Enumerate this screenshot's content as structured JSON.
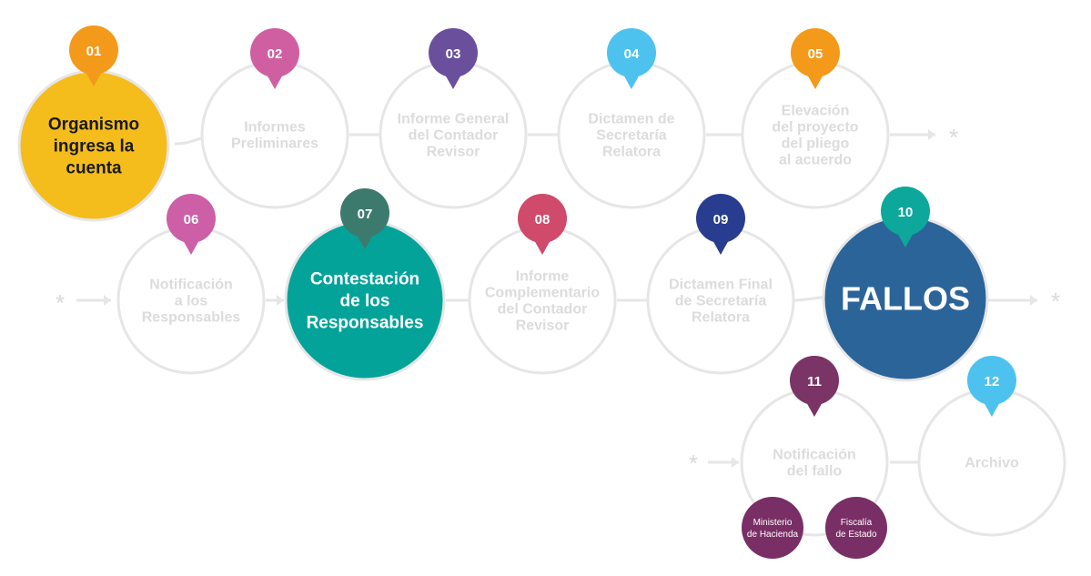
{
  "steps": [
    {
      "num": "01",
      "lines": [
        "Organismo",
        "ingresa la",
        "cuenta"
      ],
      "badge_color": "#f39a1b",
      "fill": "#f5bd1b",
      "active": true
    },
    {
      "num": "02",
      "lines": [
        "Informes",
        "Preliminares"
      ],
      "badge_color": "#d05fa2",
      "active": false
    },
    {
      "num": "03",
      "lines": [
        "Informe General",
        "del Contador",
        "Revisor"
      ],
      "badge_color": "#6a4f9c",
      "active": false
    },
    {
      "num": "04",
      "lines": [
        "Dictamen de",
        "Secretaría",
        "Relatora"
      ],
      "badge_color": "#4ec2ef",
      "active": false
    },
    {
      "num": "05",
      "lines": [
        "Elevación",
        "del proyecto",
        "del pliego",
        "al acuerdo"
      ],
      "badge_color": "#f39a1b",
      "active": false
    },
    {
      "num": "06",
      "lines": [
        "Notificación",
        "a los",
        "Responsables"
      ],
      "badge_color": "#cc5fa6",
      "active": false
    },
    {
      "num": "07",
      "lines": [
        "Contestación",
        "de los",
        "Responsables"
      ],
      "badge_color": "#3d7a6e",
      "fill": "#03a39a",
      "active": true
    },
    {
      "num": "08",
      "lines": [
        "Informe",
        "Complementario",
        "del Contador",
        "Revisor"
      ],
      "badge_color": "#cf4a6b",
      "active": false
    },
    {
      "num": "09",
      "lines": [
        "Dictamen Final",
        "de Secretaría",
        "Relatora"
      ],
      "badge_color": "#283d8f",
      "active": false
    },
    {
      "num": "10",
      "lines": [
        "FALLOS"
      ],
      "badge_color": "#0da89b",
      "fill": "#2b6499",
      "active": true
    },
    {
      "num": "11",
      "lines": [
        "Notificación",
        "del fallo"
      ],
      "badge_color": "#7a3466",
      "active": false
    },
    {
      "num": "12",
      "lines": [
        "Archivo"
      ],
      "badge_color": "#4ec2ef",
      "active": false
    }
  ],
  "sub_badges": [
    {
      "lines": [
        "Ministerio",
        "de Hacienda"
      ],
      "color": "#7a2e66"
    },
    {
      "lines": [
        "Fiscalía",
        "de Estado"
      ],
      "color": "#7a2e66"
    }
  ],
  "continuation_marker": "*"
}
